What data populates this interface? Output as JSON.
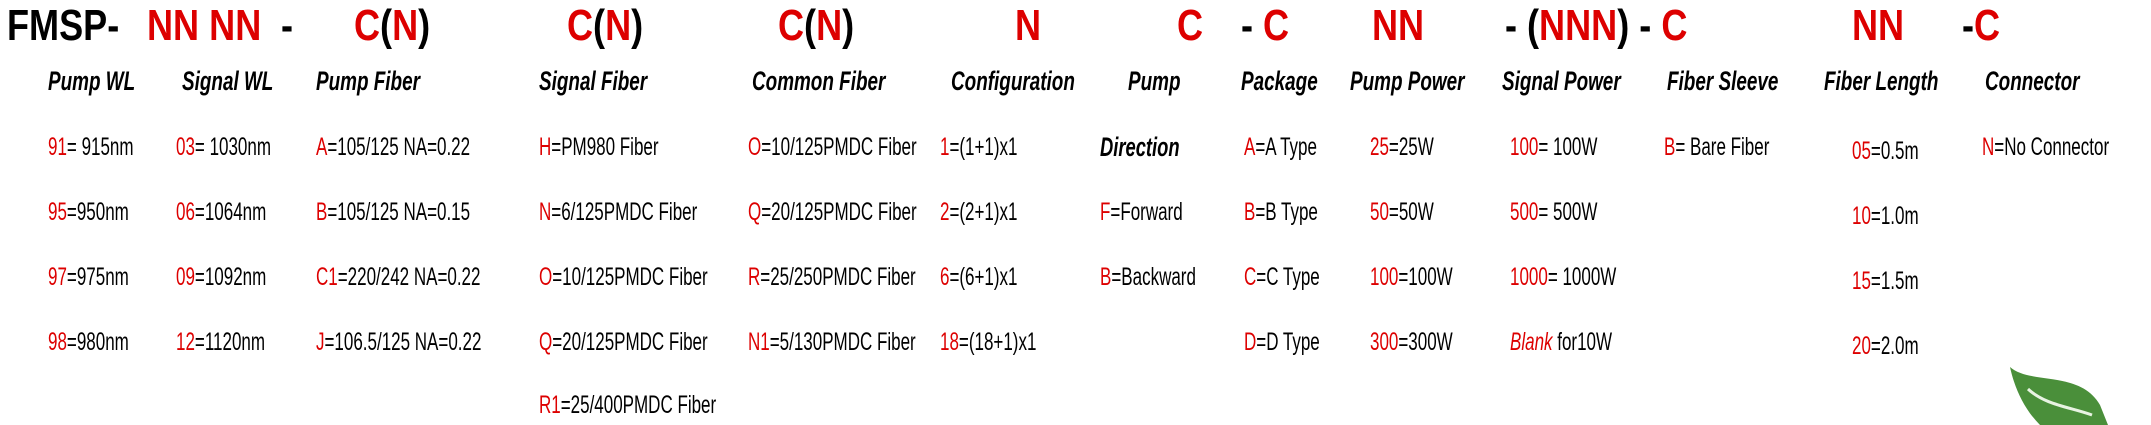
{
  "colors": {
    "code_red": "#dd0000",
    "text": "#000000",
    "leaf_green": "#4a8f3a"
  },
  "model_code": [
    {
      "text": "FMSP-",
      "color": "black"
    },
    {
      "text": "NN NN",
      "color": "red"
    },
    {
      "text": "-",
      "color": "black"
    },
    {
      "parts": [
        {
          "text": "C",
          "color": "red"
        },
        {
          "text": "(",
          "color": "black"
        },
        {
          "text": "N",
          "color": "red"
        },
        {
          "text": ")",
          "color": "black"
        }
      ]
    },
    {
      "parts": [
        {
          "text": "C",
          "color": "red"
        },
        {
          "text": "(",
          "color": "black"
        },
        {
          "text": "N",
          "color": "red"
        },
        {
          "text": ")",
          "color": "black"
        }
      ]
    },
    {
      "parts": [
        {
          "text": "C",
          "color": "red"
        },
        {
          "text": "(",
          "color": "black"
        },
        {
          "text": "N",
          "color": "red"
        },
        {
          "text": ")",
          "color": "black"
        }
      ]
    },
    {
      "text": "N",
      "color": "red"
    },
    {
      "text": "C",
      "color": "red"
    },
    {
      "parts": [
        {
          "text": "- ",
          "color": "black"
        },
        {
          "text": "C",
          "color": "red"
        }
      ]
    },
    {
      "text": "NN",
      "color": "red"
    },
    {
      "parts": [
        {
          "text": "- (",
          "color": "black"
        },
        {
          "text": "NNN",
          "color": "red"
        },
        {
          "text": ") - ",
          "color": "black"
        },
        {
          "text": "C",
          "color": "red"
        }
      ]
    },
    {
      "text": "NN",
      "color": "red"
    },
    {
      "parts": [
        {
          "text": "-",
          "color": "black"
        },
        {
          "text": "C",
          "color": "red"
        }
      ]
    }
  ],
  "columns": [
    {
      "header": "Pump WL",
      "items": [
        {
          "code": "91",
          "text": "= 915nm"
        },
        {
          "code": "95",
          "text": "=950nm"
        },
        {
          "code": "97",
          "text": "=975nm"
        },
        {
          "code": "98",
          "text": "=980nm"
        }
      ]
    },
    {
      "header": "Signal WL",
      "items": [
        {
          "code": "03",
          "text": "= 1030nm"
        },
        {
          "code": "06",
          "text": "=1064nm"
        },
        {
          "code": "09",
          "text": "=1092nm"
        },
        {
          "code": "12",
          "text": "=1120nm"
        }
      ]
    },
    {
      "header": "Pump Fiber",
      "items": [
        {
          "code": "A",
          "text": "=105/125 NA=0.22"
        },
        {
          "code": "B",
          "text": "=105/125 NA=0.15"
        },
        {
          "code": "C1",
          "text": "=220/242 NA=0.22"
        },
        {
          "code": "J",
          "text": "=106.5/125 NA=0.22"
        }
      ]
    },
    {
      "header": "Signal Fiber",
      "items": [
        {
          "code": "H",
          "text": "=PM980 Fiber"
        },
        {
          "code": "N",
          "text": "=6/125PMDC Fiber"
        },
        {
          "code": "O",
          "text": "=10/125PMDC Fiber"
        },
        {
          "code": "Q",
          "text": "=20/125PMDC Fiber"
        },
        {
          "code": "R1",
          "text": "=25/400PMDC Fiber"
        }
      ]
    },
    {
      "header": "Common Fiber",
      "items": [
        {
          "code": "O",
          "text": "=10/125PMDC Fiber"
        },
        {
          "code": "Q",
          "text": "=20/125PMDC Fiber"
        },
        {
          "code": "R",
          "text": "=25/250PMDC Fiber"
        },
        {
          "code": "N1",
          "text": "=5/130PMDC Fiber"
        }
      ]
    },
    {
      "header": "Configuration",
      "items": [
        {
          "code": "1",
          "text": "=(1+1)x1"
        },
        {
          "code": "2",
          "text": "=(2+1)x1"
        },
        {
          "code": "6",
          "text": "=(6+1)x1"
        },
        {
          "code": "18",
          "text": "=(18+1)x1"
        }
      ]
    },
    {
      "header": "Pump",
      "subheader": "Direction",
      "items": [
        {
          "code": "F",
          "text": "=Forward"
        },
        {
          "code": "B",
          "text": "=Backward"
        }
      ]
    },
    {
      "header": "Package",
      "items": [
        {
          "code": "A",
          "text": "=A Type"
        },
        {
          "code": "B",
          "text": "=B Type"
        },
        {
          "code": "C",
          "text": "=C Type"
        },
        {
          "code": "D",
          "text": "=D Type"
        }
      ]
    },
    {
      "header": "Pump Power",
      "items": [
        {
          "code": "25",
          "text": "=25W"
        },
        {
          "code": "50",
          "text": "=50W"
        },
        {
          "code": "100",
          "text": "=100W"
        },
        {
          "code": "300",
          "text": "=300W"
        }
      ]
    },
    {
      "header": "Signal Power",
      "items": [
        {
          "code": "100",
          "text": "= 100W"
        },
        {
          "code": "500",
          "text": "= 500W"
        },
        {
          "code": "1000",
          "text": "= 1000W"
        },
        {
          "code": "Blank",
          "text": " for10W",
          "italic_code": true
        }
      ]
    },
    {
      "header": "Fiber Sleeve",
      "items": [
        {
          "code": "B",
          "text": "= Bare Fiber"
        }
      ]
    },
    {
      "header": "Fiber Length",
      "items": [
        {
          "code": "05",
          "text": "=0.5m"
        },
        {
          "code": "10",
          "text": "=1.0m"
        },
        {
          "code": "15",
          "text": "=1.5m"
        },
        {
          "code": "20",
          "text": "=2.0m"
        }
      ]
    },
    {
      "header": "Connector",
      "items": [
        {
          "code": "N",
          "text": "=No Connector"
        }
      ]
    }
  ]
}
